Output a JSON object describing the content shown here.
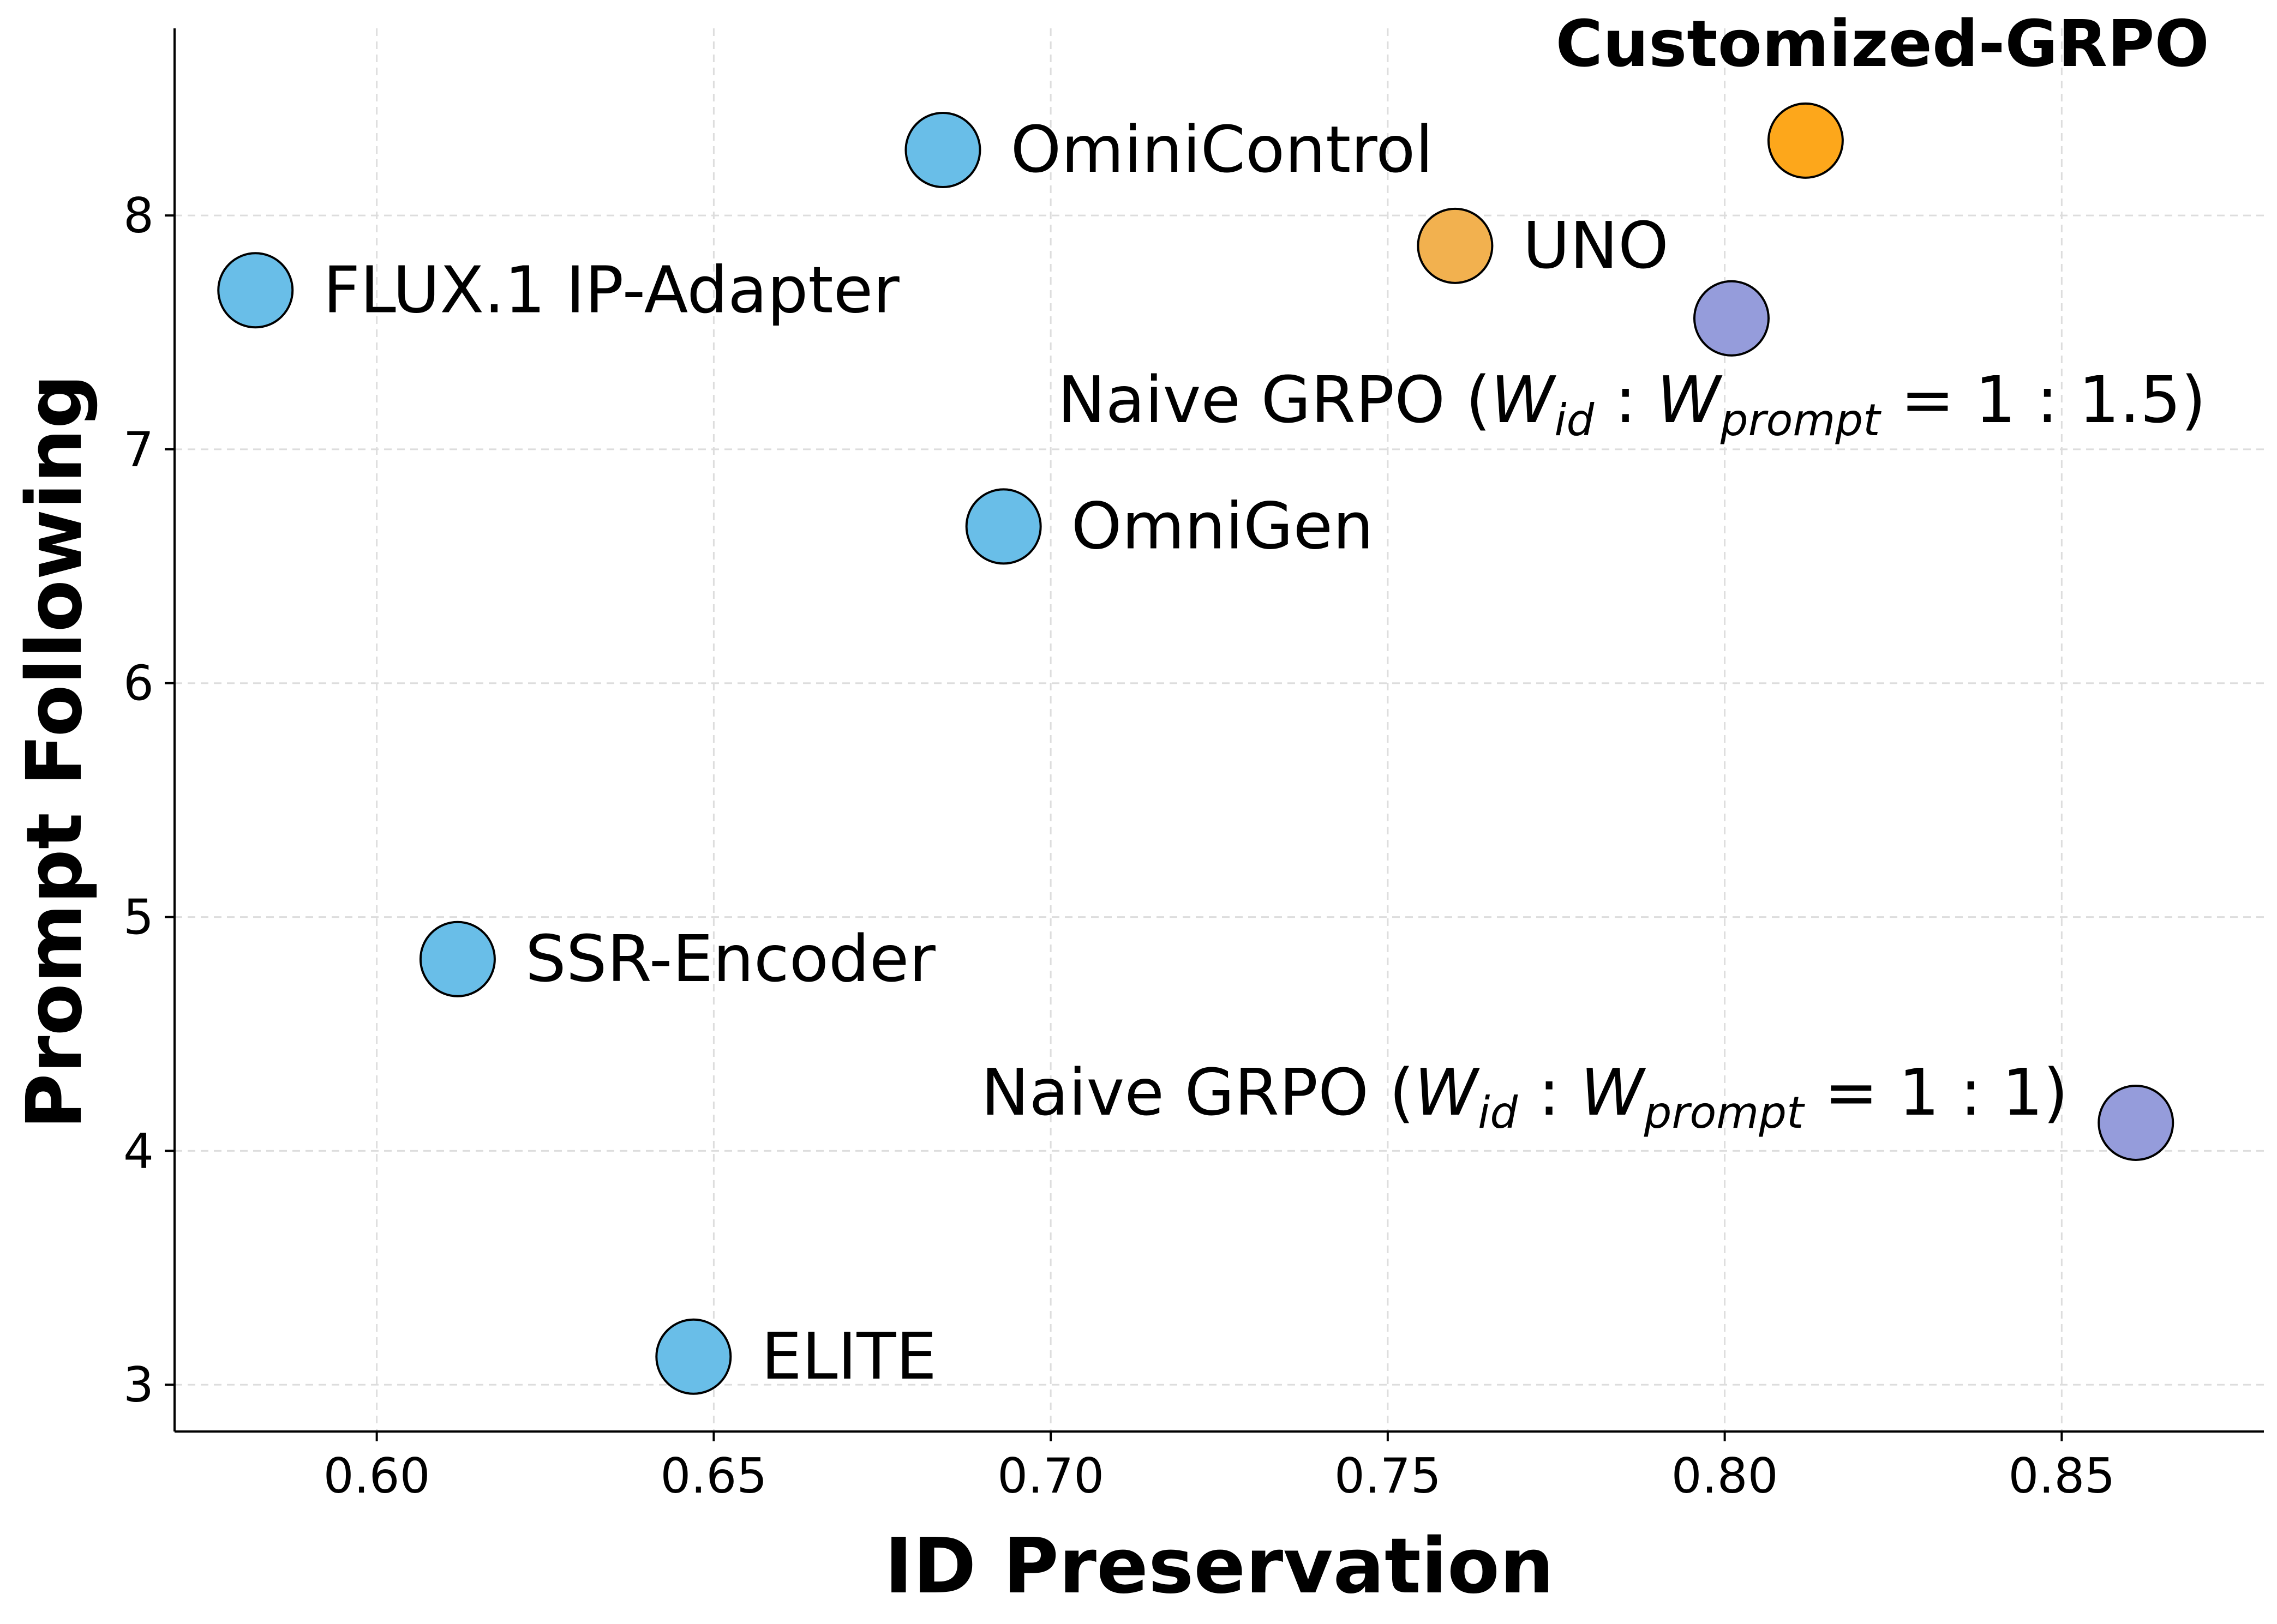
{
  "chart_data": {
    "type": "scatter",
    "xlabel": "ID Preservation",
    "ylabel": "Prompt Following",
    "xlim": [
      0.57,
      0.88
    ],
    "ylim": [
      2.8,
      8.8
    ],
    "xticks": [
      "0.60",
      "0.65",
      "0.70",
      "0.75",
      "0.80",
      "0.85"
    ],
    "xtick_values": [
      0.6,
      0.65,
      0.7,
      0.75,
      0.8,
      0.85
    ],
    "yticks": [
      "3",
      "4",
      "5",
      "6",
      "7",
      "8"
    ],
    "ytick_values": [
      3,
      4,
      5,
      6,
      7,
      8
    ],
    "grid": true,
    "colors": {
      "baseline": "#69BEE8",
      "uno": "#F2B14F",
      "naive": "#959CDB",
      "ours": "#FDA71B"
    },
    "points": [
      {
        "label": "FLUX.1 IP-Adapter",
        "x": 0.582,
        "y": 7.68,
        "color_key": "baseline",
        "label_side": "right"
      },
      {
        "label": "OminiControl",
        "x": 0.684,
        "y": 8.28,
        "color_key": "baseline",
        "label_side": "right"
      },
      {
        "label": "OmniGen",
        "x": 0.693,
        "y": 6.67,
        "color_key": "baseline",
        "label_side": "right"
      },
      {
        "label": "SSR-Encoder",
        "x": 0.612,
        "y": 4.82,
        "color_key": "baseline",
        "label_side": "right"
      },
      {
        "label": "ELITE",
        "x": 0.647,
        "y": 3.12,
        "color_key": "baseline",
        "label_side": "right"
      },
      {
        "label": "UNO",
        "x": 0.76,
        "y": 7.87,
        "color_key": "uno",
        "label_side": "right"
      },
      {
        "label": "Naive GRPO (",
        "math": "W_id : W_prompt = 1 : 1.5",
        "ratio": "1 : 1.5",
        "x": 0.801,
        "y": 7.56,
        "color_key": "naive",
        "label_side": "below-left"
      },
      {
        "label": "Naive GRPO (",
        "math": "W_id : W_prompt = 1 : 1",
        "ratio": "1 : 1",
        "x": 0.861,
        "y": 4.12,
        "color_key": "naive",
        "label_side": "left"
      },
      {
        "label": "Customized-GRPO",
        "x": 0.812,
        "y": 8.32,
        "color_key": "ours",
        "label_side": "above-left",
        "bold": true
      }
    ]
  }
}
